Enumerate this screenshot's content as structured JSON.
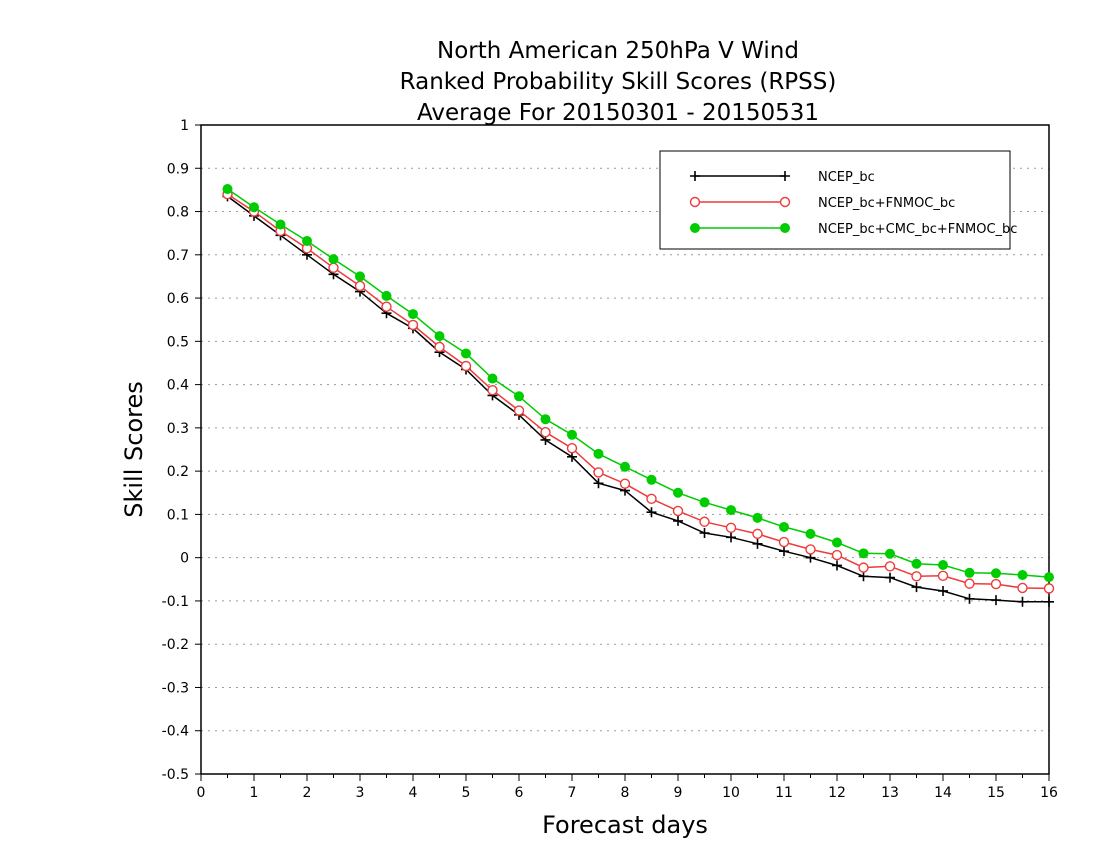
{
  "chart_data": {
    "type": "line",
    "title": [
      "North American 250hPa V Wind",
      "Ranked Probability Skill Scores (RPSS)",
      "Average For 20150301 - 20150531"
    ],
    "xlabel": "Forecast days",
    "ylabel": "Skill Scores",
    "xlim": [
      0,
      16
    ],
    "ylim": [
      -0.5,
      1
    ],
    "x_ticks": [
      "0",
      "1",
      "2",
      "3",
      "4",
      "5",
      "6",
      "7",
      "8",
      "9",
      "10",
      "11",
      "12",
      "13",
      "14",
      "15",
      "16"
    ],
    "y_ticks": [
      "-0.5",
      "-0.4",
      "-0.3",
      "-0.2",
      "-0.1",
      "0",
      "0.1",
      "0.2",
      "0.3",
      "0.4",
      "0.5",
      "0.6",
      "0.7",
      "0.8",
      "0.9",
      "1"
    ],
    "grid": "horizontal dotted",
    "legend_position": "top-right",
    "x": [
      0.5,
      1,
      1.5,
      2,
      2.5,
      3,
      3.5,
      4,
      4.5,
      5,
      5.5,
      6,
      6.5,
      7,
      7.5,
      8,
      8.5,
      9,
      9.5,
      10,
      10.5,
      11,
      11.5,
      12,
      12.5,
      13,
      13.5,
      14,
      14.5,
      15,
      15.5,
      16
    ],
    "series": [
      {
        "name": "NCEP_bc",
        "color": "#000000",
        "marker": "plus",
        "values": [
          0.835,
          0.79,
          0.745,
          0.7,
          0.655,
          0.615,
          0.565,
          0.53,
          0.475,
          0.435,
          0.375,
          0.33,
          0.272,
          0.233,
          0.172,
          0.155,
          0.105,
          0.085,
          0.057,
          0.047,
          0.032,
          0.015,
          0.0,
          -0.018,
          -0.043,
          -0.046,
          -0.068,
          -0.077,
          -0.095,
          -0.098,
          -0.102,
          -0.102
        ]
      },
      {
        "name": "NCEP_bc+FNMOC_bc",
        "color": "#ee3b3b",
        "marker": "open-circle",
        "values": [
          0.84,
          0.8,
          0.755,
          0.715,
          0.67,
          0.628,
          0.58,
          0.538,
          0.487,
          0.443,
          0.387,
          0.34,
          0.29,
          0.253,
          0.197,
          0.171,
          0.136,
          0.108,
          0.083,
          0.069,
          0.055,
          0.036,
          0.019,
          0.006,
          -0.023,
          -0.02,
          -0.043,
          -0.042,
          -0.06,
          -0.061,
          -0.07,
          -0.071
        ]
      },
      {
        "name": "NCEP_bc+CMC_bc+FNMOC_bc",
        "color": "#00cc00",
        "marker": "filled-circle",
        "values": [
          0.852,
          0.81,
          0.77,
          0.732,
          0.69,
          0.65,
          0.605,
          0.563,
          0.512,
          0.472,
          0.414,
          0.373,
          0.32,
          0.284,
          0.24,
          0.21,
          0.18,
          0.15,
          0.128,
          0.11,
          0.092,
          0.071,
          0.055,
          0.035,
          0.01,
          0.009,
          -0.014,
          -0.017,
          -0.035,
          -0.036,
          -0.04,
          -0.045
        ]
      }
    ]
  }
}
